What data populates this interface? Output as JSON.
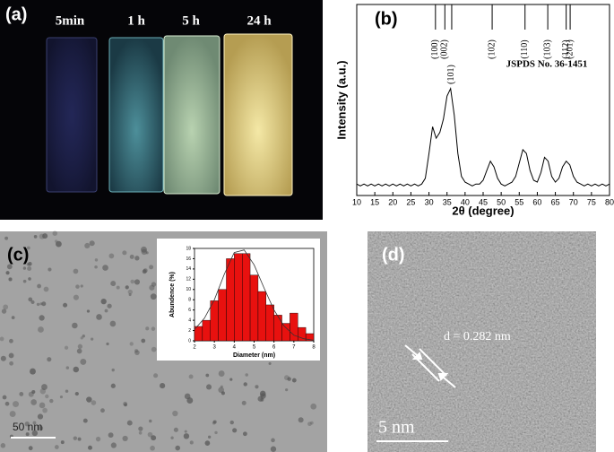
{
  "panels": {
    "a": {
      "label": "(a)",
      "samples": [
        "5min",
        "1 h",
        "5 h",
        "24 h"
      ]
    },
    "b": {
      "label": "(b)",
      "reference_card": "JSPDS No. 36-1451"
    },
    "c": {
      "label": "(c)",
      "scale_bar": "50 nm"
    },
    "d": {
      "label": "(d)",
      "spacing": "d = 0.282 nm",
      "scale_bar": "5 nm"
    }
  },
  "chart_data": [
    {
      "type": "line",
      "x_label": "2θ (degree)",
      "y_label": "Intensity (a.u.)",
      "color": "#000000",
      "xlim": [
        10,
        80
      ],
      "xticks": [
        10,
        15,
        20,
        25,
        30,
        35,
        40,
        45,
        50,
        55,
        60,
        65,
        70,
        75,
        80
      ],
      "ylim": [
        0,
        100
      ],
      "x": [
        10,
        11,
        12,
        13,
        14,
        15,
        16,
        17,
        18,
        19,
        20,
        21,
        22,
        23,
        24,
        25,
        26,
        27,
        28,
        29,
        30,
        31,
        32,
        33,
        34,
        35,
        36,
        37,
        38,
        39,
        40,
        41,
        42,
        43,
        44,
        45,
        46,
        47,
        48,
        49,
        50,
        51,
        52,
        53,
        54,
        55,
        56,
        57,
        58,
        59,
        60,
        61,
        62,
        63,
        64,
        65,
        66,
        67,
        68,
        69,
        70,
        71,
        72,
        73,
        74,
        75,
        76,
        77,
        78,
        79,
        80
      ],
      "values": [
        6,
        5,
        6,
        5,
        6,
        5,
        6,
        5,
        6,
        5,
        6,
        5,
        6,
        5,
        6,
        5,
        6,
        5,
        6,
        9,
        22,
        36,
        30,
        33,
        40,
        52,
        56,
        42,
        22,
        10,
        7,
        6,
        5,
        6,
        6,
        8,
        13,
        18,
        15,
        9,
        6,
        5,
        6,
        7,
        10,
        17,
        24,
        22,
        13,
        8,
        7,
        12,
        20,
        18,
        10,
        7,
        9,
        15,
        18,
        16,
        10,
        7,
        6,
        5,
        6,
        5,
        6,
        5,
        6,
        5,
        6
      ],
      "reference_peaks": [
        {
          "label": "(100)",
          "x": 31.8
        },
        {
          "label": "(002)",
          "x": 34.4
        },
        {
          "label": "(101)",
          "x": 36.3
        },
        {
          "label": "(102)",
          "x": 47.5
        },
        {
          "label": "(110)",
          "x": 56.6
        },
        {
          "label": "(103)",
          "x": 62.9
        },
        {
          "label": "(112)",
          "x": 68.0
        },
        {
          "label": "(201)",
          "x": 69.1
        }
      ]
    },
    {
      "type": "histogram",
      "x_label": "Diameter (nm)",
      "y_label": "Abundence (%)",
      "color": "#e8110f",
      "bins": [
        2.0,
        2.4,
        2.8,
        3.2,
        3.6,
        4.0,
        4.4,
        4.8,
        5.2,
        5.6,
        6.0,
        6.4,
        6.8,
        7.2,
        7.6,
        8.0
      ],
      "values": [
        2.8,
        4.0,
        7.8,
        10.0,
        16.0,
        17.0,
        17.0,
        12.8,
        9.6,
        7.0,
        5.0,
        3.4,
        5.4,
        2.6,
        1.4
      ],
      "xlim": [
        2,
        8
      ],
      "xticks": [
        2,
        3,
        4,
        5,
        6,
        7,
        8
      ],
      "ylim": [
        0,
        18
      ],
      "yticks": [
        0,
        2,
        4,
        6,
        8,
        10,
        12,
        14,
        16,
        18
      ],
      "fit": {
        "x": [
          2,
          2.5,
          3,
          3.5,
          4,
          4.5,
          5,
          5.5,
          6,
          6.5,
          7,
          7.5,
          8
        ],
        "values": [
          2.2,
          4.4,
          8.0,
          13.0,
          17.2,
          17.7,
          14.8,
          10.3,
          6.0,
          2.9,
          1.1,
          0.4,
          0.1
        ]
      }
    }
  ]
}
